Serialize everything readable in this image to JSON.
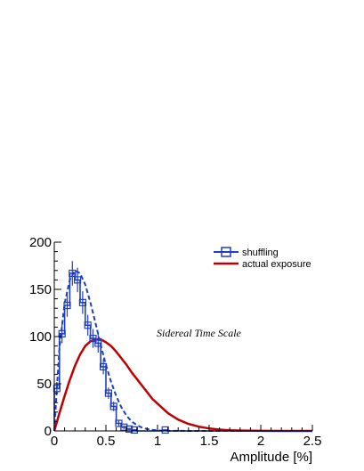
{
  "chart_data": {
    "type": "line",
    "title": "",
    "xlabel": "Amplitude [%]",
    "ylabel": "",
    "xlim": [
      0,
      2.5
    ],
    "ylim": [
      0,
      200
    ],
    "xticks": [
      0,
      0.5,
      1,
      1.5,
      2,
      2.5
    ],
    "xtick_labels": [
      "0",
      "0.5",
      "1",
      "1.5",
      "2",
      "2.5"
    ],
    "yticks": [
      0,
      50,
      100,
      150,
      200
    ],
    "ytick_labels": [
      "0",
      "50",
      "100",
      "150",
      "200"
    ],
    "grid": false,
    "legend_position": "top-right",
    "annotation": "Sidereal Time Scale",
    "series": [
      {
        "name": "shuffling",
        "kind": "histogram-with-errors",
        "color": "#1f3fbf",
        "marker": "open-square",
        "bin_width": 0.05,
        "x": [
          0.025,
          0.075,
          0.125,
          0.175,
          0.225,
          0.275,
          0.325,
          0.375,
          0.425,
          0.475,
          0.525,
          0.575,
          0.625,
          0.675,
          0.725,
          0.775,
          0.825,
          0.875,
          0.925,
          0.975,
          1.025,
          1.075,
          1.125,
          1.175,
          1.225,
          1.275,
          1.325,
          1.375,
          1.425,
          1.475,
          1.525,
          1.575,
          1.625,
          1.675,
          1.725,
          1.775,
          1.825,
          1.875,
          1.925,
          1.975,
          2.025,
          2.075,
          2.125,
          2.175,
          2.225,
          2.275,
          2.325,
          2.375,
          2.425,
          2.475
        ],
        "y": [
          45,
          103,
          133,
          167,
          160,
          136,
          112,
          98,
          93,
          68,
          40,
          26,
          8,
          4,
          2,
          1,
          0,
          0,
          0,
          0,
          0,
          1,
          0,
          0,
          0,
          0,
          0,
          0,
          0,
          0,
          0,
          0,
          0,
          0,
          0,
          0,
          0,
          0,
          0,
          0,
          0,
          0,
          0,
          0,
          0,
          0,
          0,
          0,
          0,
          0
        ],
        "errors": [
          7,
          10,
          12,
          13,
          13,
          12,
          11,
          10,
          10,
          8,
          6,
          5,
          3,
          2,
          1.4,
          1,
          0,
          0,
          0,
          0,
          0,
          1,
          0,
          0,
          0,
          0,
          0,
          0,
          0,
          0,
          0,
          0,
          0,
          0,
          0,
          0,
          0,
          0,
          0,
          0,
          0,
          0,
          0,
          0,
          0,
          0,
          0,
          0,
          0,
          0
        ]
      },
      {
        "name": "shuffling-fit",
        "kind": "dashed-line",
        "color": "#1f3fbf",
        "x": [
          0,
          0.025,
          0.05,
          0.1,
          0.15,
          0.2,
          0.25,
          0.3,
          0.35,
          0.4,
          0.45,
          0.5,
          0.55,
          0.6,
          0.65,
          0.7,
          0.75,
          0.8,
          0.85,
          0.9,
          0.95,
          1.0,
          1.1,
          1.2,
          1.4,
          1.6,
          2.0,
          2.5
        ],
        "y": [
          0,
          45,
          88,
          135,
          160,
          170,
          167,
          155,
          136,
          114,
          91,
          70,
          52,
          37,
          25,
          16,
          10,
          6,
          3.5,
          2,
          1.1,
          0.6,
          0.2,
          0.05,
          0,
          0,
          0,
          0
        ]
      },
      {
        "name": "actual exposure",
        "kind": "line",
        "color": "#c00000",
        "x": [
          0,
          0.05,
          0.1,
          0.15,
          0.2,
          0.25,
          0.3,
          0.35,
          0.4,
          0.45,
          0.5,
          0.55,
          0.6,
          0.65,
          0.7,
          0.75,
          0.8,
          0.85,
          0.9,
          0.95,
          1.0,
          1.1,
          1.2,
          1.3,
          1.4,
          1.5,
          1.6,
          1.7,
          1.8,
          1.9,
          2.0,
          2.2,
          2.5
        ],
        "y": [
          0,
          19,
          37,
          54,
          69,
          81,
          90,
          95,
          97,
          97,
          94,
          90,
          84,
          77,
          70,
          62,
          55,
          48,
          41,
          34,
          29,
          19,
          12,
          7.5,
          4.5,
          2.6,
          1.4,
          0.7,
          0.35,
          0.17,
          0.08,
          0.01,
          0
        ]
      }
    ]
  }
}
